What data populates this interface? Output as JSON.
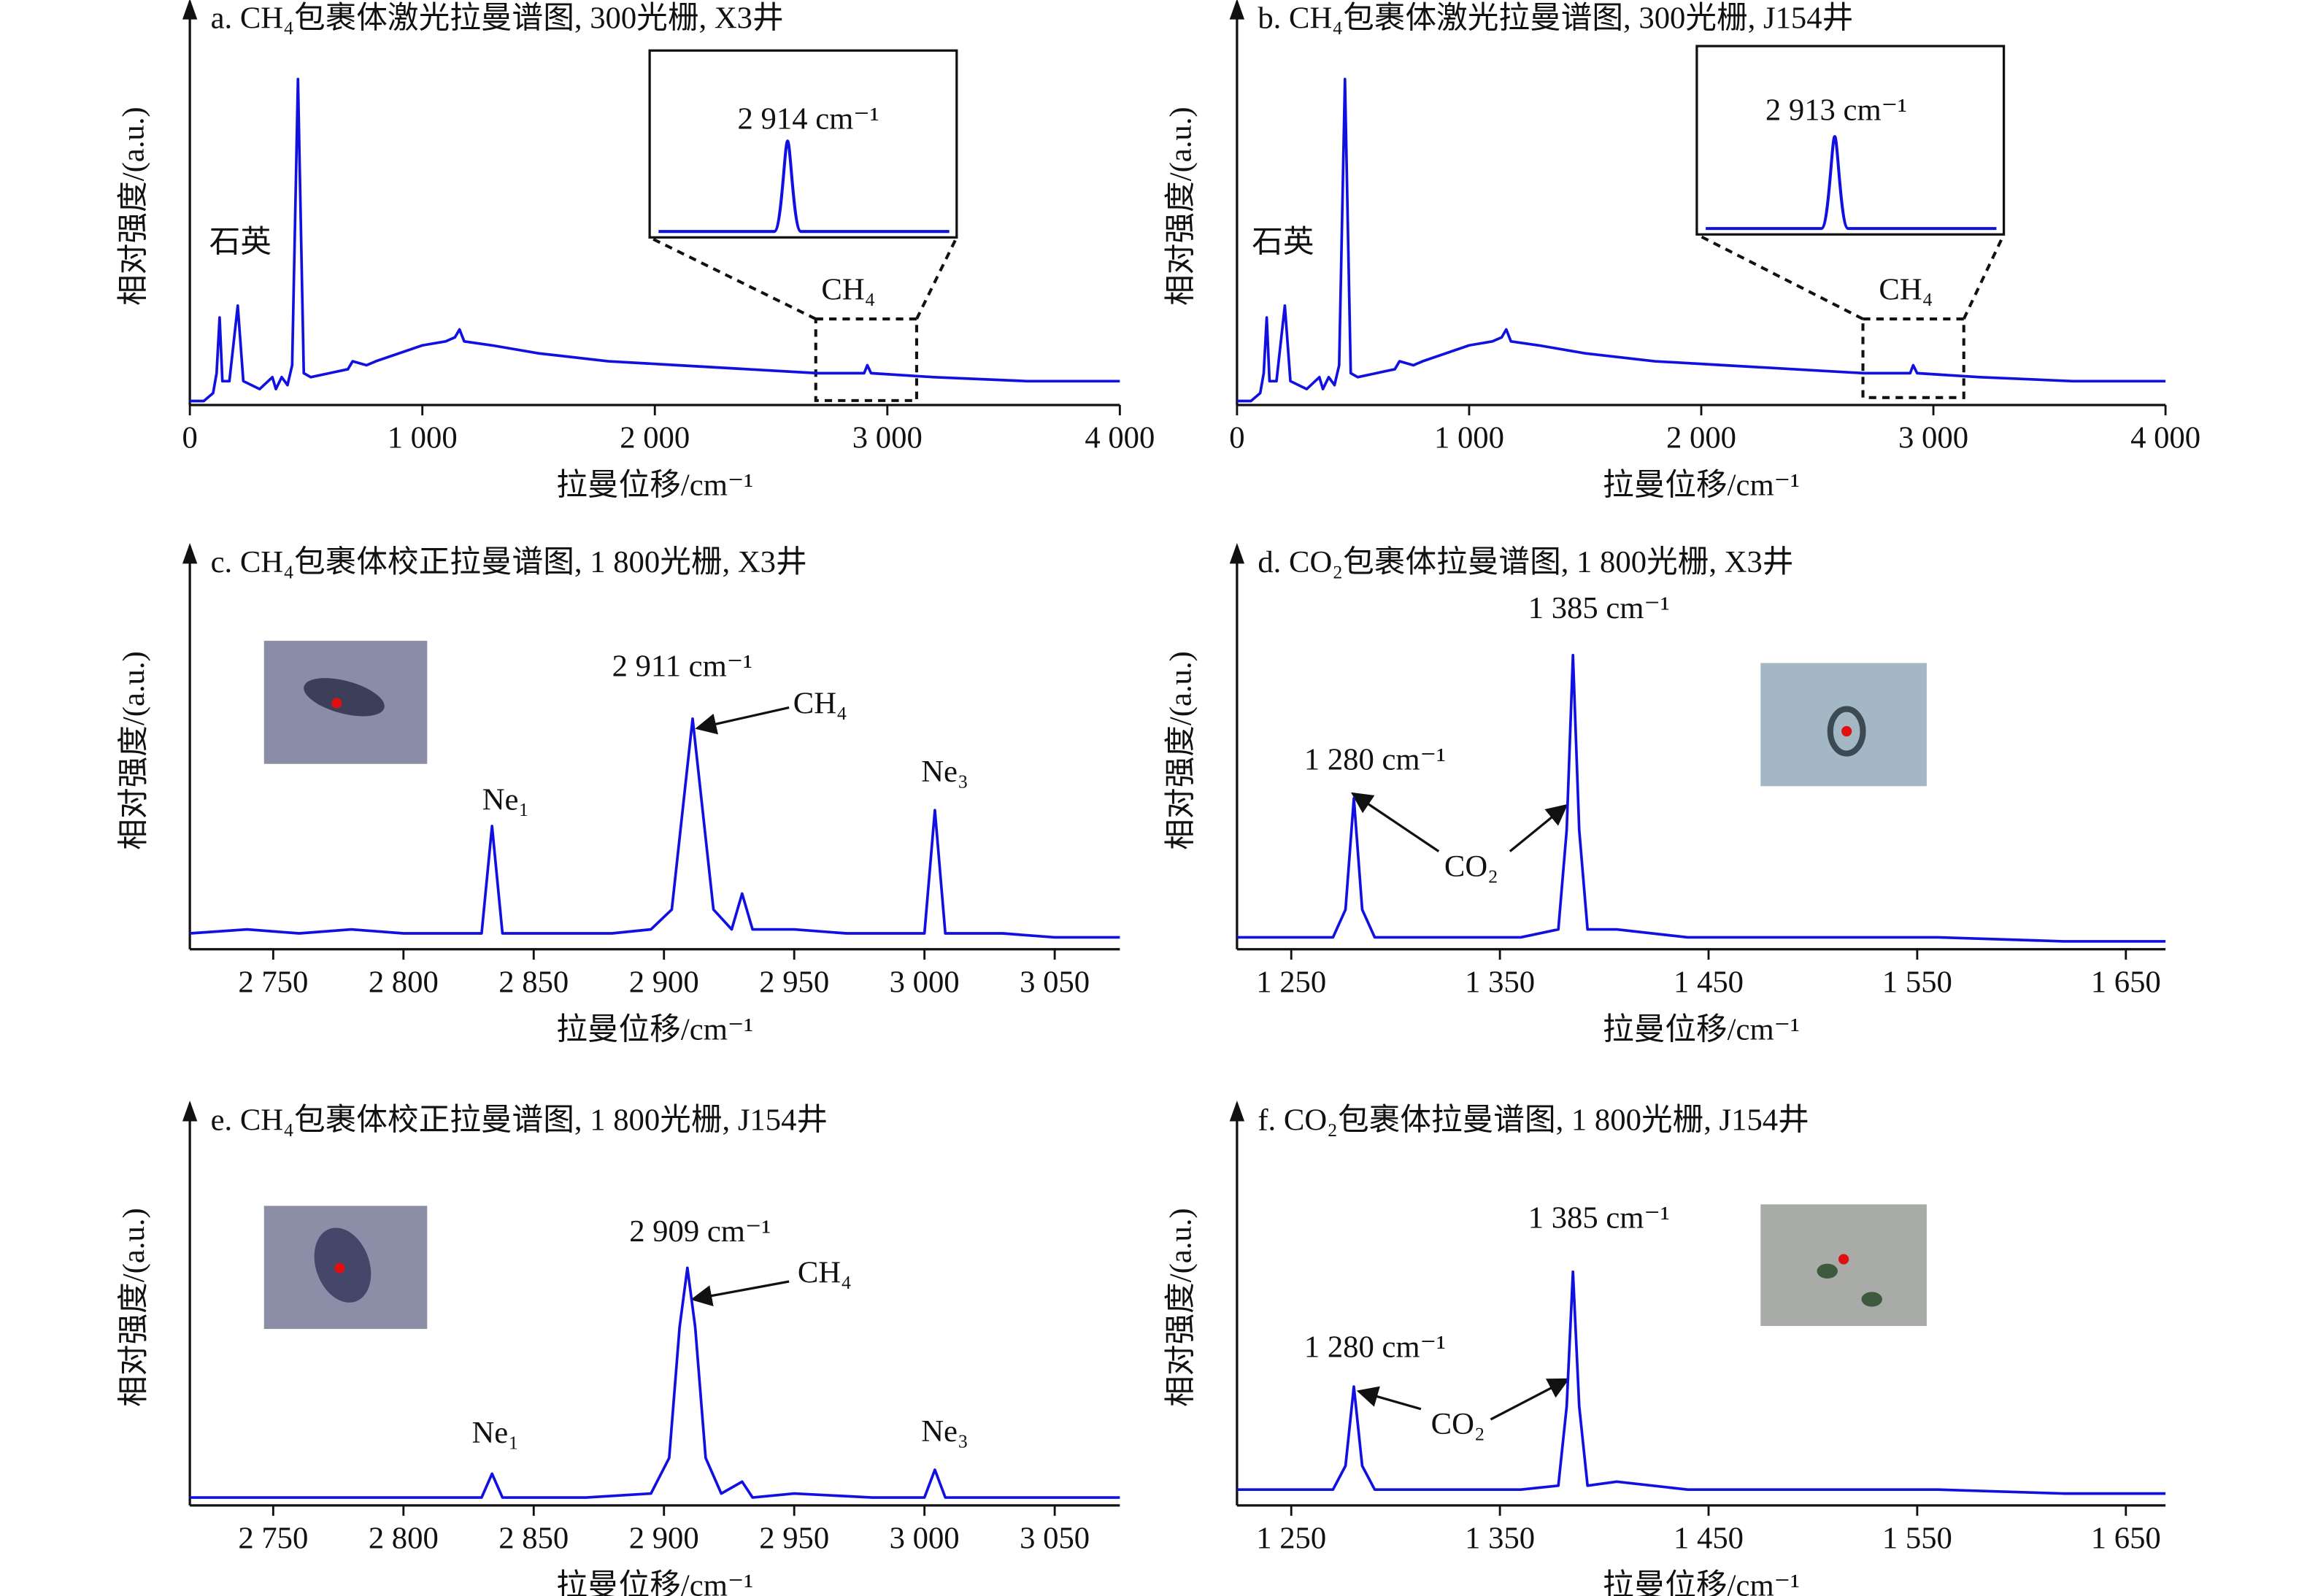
{
  "chart_data": [
    {
      "type": "line",
      "title": "a. CH₄包裹体激光拉曼谱图, 300光栅, X3井",
      "x_label": "拉曼位移/cm⁻¹",
      "y_label": "相对强度/(a.u.)",
      "color": "#1010e0",
      "x": [
        0,
        60,
        100,
        115,
        128,
        140,
        170,
        206,
        230,
        300,
        355,
        370,
        395,
        420,
        440,
        465,
        490,
        520,
        600,
        680,
        700,
        760,
        800,
        900,
        1000,
        1100,
        1140,
        1160,
        1180,
        1300,
        1500,
        1800,
        2100,
        2400,
        2700,
        2900,
        2914,
        2930,
        3200,
        3600,
        4000
      ],
      "values": [
        1,
        1,
        3,
        8,
        22,
        6,
        6,
        25,
        6,
        4,
        7,
        4,
        7,
        5,
        10,
        82,
        8,
        7,
        8,
        9,
        11,
        10,
        11,
        13,
        15,
        16,
        17,
        19,
        16,
        15,
        13,
        11,
        10,
        9,
        8,
        8,
        10,
        8,
        7,
        6,
        6
      ],
      "xlim": [
        0,
        4000
      ],
      "ylim": [
        0,
        100
      ],
      "xticks": [
        0,
        {
          "value": 1000,
          "label": "1 000"
        },
        {
          "value": 2000,
          "label": "2 000"
        },
        {
          "value": 3000,
          "label": "3 000"
        },
        {
          "value": 4000,
          "label": "4 000"
        }
      ],
      "annotations": [
        "石英",
        "CH₄",
        "2 914 cm⁻¹"
      ]
    },
    {
      "type": "line",
      "title": "b. CH₄包裹体激光拉曼谱图, 300光栅, J154井",
      "x_label": "拉曼位移/cm⁻¹",
      "y_label": "相对强度/(a.u.)",
      "color": "#1010e0",
      "x": [
        0,
        60,
        100,
        115,
        128,
        140,
        170,
        206,
        230,
        300,
        355,
        370,
        395,
        420,
        440,
        465,
        490,
        520,
        600,
        680,
        700,
        760,
        800,
        900,
        1000,
        1100,
        1140,
        1160,
        1180,
        1300,
        1500,
        1800,
        2100,
        2400,
        2700,
        2900,
        2913,
        2930,
        3200,
        3600,
        4000
      ],
      "values": [
        1,
        1,
        3,
        8,
        22,
        6,
        6,
        25,
        6,
        4,
        7,
        4,
        7,
        5,
        10,
        82,
        8,
        7,
        8,
        9,
        11,
        10,
        11,
        13,
        15,
        16,
        17,
        19,
        16,
        15,
        13,
        11,
        10,
        9,
        8,
        8,
        10,
        8,
        7,
        6,
        6
      ],
      "xlim": [
        0,
        4000
      ],
      "ylim": [
        0,
        100
      ],
      "xticks": [
        0,
        {
          "value": 1000,
          "label": "1 000"
        },
        {
          "value": 2000,
          "label": "2 000"
        },
        {
          "value": 3000,
          "label": "3 000"
        },
        {
          "value": 4000,
          "label": "4 000"
        }
      ],
      "annotations": [
        "石英",
        "CH₄",
        "2 913 cm⁻¹"
      ]
    },
    {
      "type": "line",
      "title": "c. CH₄包裹体校正拉曼谱图, 1 800光栅, X3井",
      "x_label": "拉曼位移/cm⁻¹",
      "y_label": "相对强度/(a.u.)",
      "color": "#1010e0",
      "x": [
        2718,
        2740,
        2760,
        2780,
        2800,
        2820,
        2830,
        2834,
        2838,
        2860,
        2880,
        2895,
        2903,
        2908,
        2911,
        2914,
        2919,
        2926,
        2930,
        2934,
        2950,
        2970,
        2990,
        3000,
        3004,
        3008,
        3030,
        3050,
        3075
      ],
      "values": [
        4,
        5,
        4,
        5,
        4,
        4,
        4,
        31,
        4,
        4,
        4,
        5,
        10,
        40,
        58,
        40,
        10,
        5,
        14,
        5,
        5,
        4,
        4,
        4,
        35,
        4,
        4,
        3,
        3
      ],
      "xlim": [
        2718,
        3075
      ],
      "ylim": [
        0,
        100
      ],
      "xticks": [
        {
          "value": 2750,
          "label": "2 750"
        },
        {
          "value": 2800,
          "label": "2 800"
        },
        {
          "value": 2850,
          "label": "2 850"
        },
        {
          "value": 2900,
          "label": "2 900"
        },
        {
          "value": 2950,
          "label": "2 950"
        },
        {
          "value": 3000,
          "label": "3 000"
        },
        {
          "value": 3050,
          "label": "3 050"
        }
      ],
      "annotations": [
        "2 911 cm⁻¹",
        "CH₄",
        "Ne₁",
        "Ne₃"
      ]
    },
    {
      "type": "line",
      "title": "d. CO₂包裹体拉曼谱图, 1 800光栅, X3井",
      "x_label": "拉曼位移/cm⁻¹",
      "y_label": "相对强度/(a.u.)",
      "color": "#1010e0",
      "x": [
        1224,
        1250,
        1270,
        1276,
        1280,
        1284,
        1290,
        1320,
        1360,
        1378,
        1382,
        1385,
        1388,
        1392,
        1406,
        1440,
        1500,
        1560,
        1620,
        1669
      ],
      "values": [
        3,
        3,
        3,
        10,
        38,
        10,
        3,
        3,
        3,
        5,
        30,
        74,
        30,
        5,
        5,
        3,
        3,
        3,
        2,
        2
      ],
      "xlim": [
        1224,
        1669
      ],
      "ylim": [
        0,
        100
      ],
      "xticks": [
        {
          "value": 1250,
          "label": "1 250"
        },
        {
          "value": 1350,
          "label": "1 350"
        },
        {
          "value": 1450,
          "label": "1 450"
        },
        {
          "value": 1550,
          "label": "1 550"
        },
        {
          "value": 1650,
          "label": "1 650"
        }
      ],
      "annotations": [
        "1 385 cm⁻¹",
        "1 280 cm⁻¹",
        "CO₂"
      ]
    },
    {
      "type": "line",
      "title": "e. CH₄包裹体校正拉曼谱图, 1 800光栅, J154井",
      "x_label": "拉曼位移/cm⁻¹",
      "y_label": "相对强度/(a.u.)",
      "color": "#1010e0",
      "x": [
        2718,
        2760,
        2800,
        2830,
        2834,
        2838,
        2870,
        2895,
        2902,
        2906,
        2909,
        2912,
        2916,
        2922,
        2930,
        2934,
        2950,
        2980,
        3000,
        3004,
        3008,
        3040,
        3075
      ],
      "values": [
        2,
        2,
        2,
        2,
        8,
        2,
        2,
        3,
        12,
        45,
        60,
        45,
        12,
        3,
        6,
        2,
        3,
        2,
        2,
        9,
        2,
        2,
        2
      ],
      "xlim": [
        2718,
        3075
      ],
      "ylim": [
        0,
        100
      ],
      "xticks": [
        {
          "value": 2750,
          "label": "2 750"
        },
        {
          "value": 2800,
          "label": "2 800"
        },
        {
          "value": 2850,
          "label": "2 850"
        },
        {
          "value": 2900,
          "label": "2 900"
        },
        {
          "value": 2950,
          "label": "2 950"
        },
        {
          "value": 3000,
          "label": "3 000"
        },
        {
          "value": 3050,
          "label": "3 050"
        }
      ],
      "annotations": [
        "2 909 cm⁻¹",
        "CH₄",
        "Ne₁",
        "Ne₃"
      ]
    },
    {
      "type": "line",
      "title": "f. CO₂包裹体拉曼谱图, 1 800光栅, J154井",
      "x_label": "拉曼位移/cm⁻¹",
      "y_label": "相对强度/(a.u.)",
      "color": "#1010e0",
      "x": [
        1224,
        1250,
        1270,
        1276,
        1280,
        1284,
        1290,
        1320,
        1360,
        1378,
        1382,
        1385,
        1388,
        1392,
        1406,
        1440,
        1500,
        1560,
        1620,
        1669
      ],
      "values": [
        4,
        4,
        4,
        10,
        30,
        10,
        4,
        4,
        4,
        5,
        25,
        59,
        25,
        5,
        6,
        4,
        4,
        4,
        3,
        3
      ],
      "xlim": [
        1224,
        1669
      ],
      "ylim": [
        0,
        100
      ],
      "xticks": [
        {
          "value": 1250,
          "label": "1 250"
        },
        {
          "value": 1350,
          "label": "1 350"
        },
        {
          "value": 1450,
          "label": "1 450"
        },
        {
          "value": 1550,
          "label": "1 550"
        },
        {
          "value": 1650,
          "label": "1 650"
        }
      ],
      "annotations": [
        "1 385 cm⁻¹",
        "1 280 cm⁻¹",
        "CO₂"
      ]
    }
  ]
}
